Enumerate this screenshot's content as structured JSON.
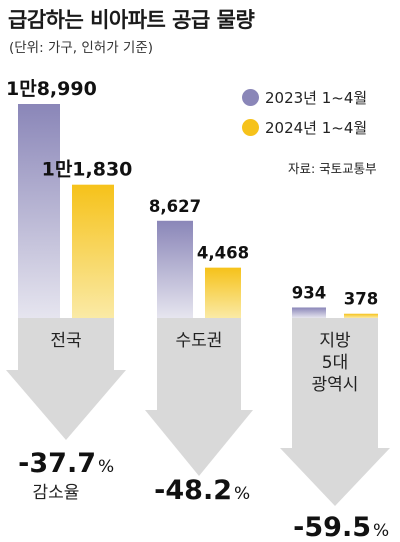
{
  "title": "급감하는 비아파트 공급 물량",
  "subtitle": "(단위: 가구, 인허가 기준)",
  "source": "자료: 국토교통부",
  "colors": {
    "series_2023": "#8a86b8",
    "series_2024": "#f6c21a",
    "arrow": "#d9d9d9"
  },
  "chart_data": {
    "type": "bar",
    "title": "급감하는 비아파트 공급 물량",
    "subtitle": "(단위: 가구, 인허가 기준)",
    "categories": [
      "전국",
      "수도권",
      "지방 5대 광역시"
    ],
    "category_lines": [
      [
        "전국"
      ],
      [
        "수도권"
      ],
      [
        "지방",
        "5대",
        "광역시"
      ]
    ],
    "series": [
      {
        "name": "2023년 1~4월",
        "values": [
          18990,
          8627,
          934
        ],
        "labels": [
          "1만8,990",
          "8,627",
          "934"
        ]
      },
      {
        "name": "2024년 1~4월",
        "values": [
          11830,
          4468,
          378
        ],
        "labels": [
          "1만1,830",
          "4,468",
          "378"
        ]
      }
    ],
    "change": [
      {
        "value": "-37.7",
        "unit": "%",
        "label": "감소율"
      },
      {
        "value": "-48.2",
        "unit": "%",
        "label": ""
      },
      {
        "value": "-59.5",
        "unit": "%",
        "label": ""
      }
    ],
    "legend_position": "top-right",
    "source": "자료: 국토교통부"
  }
}
